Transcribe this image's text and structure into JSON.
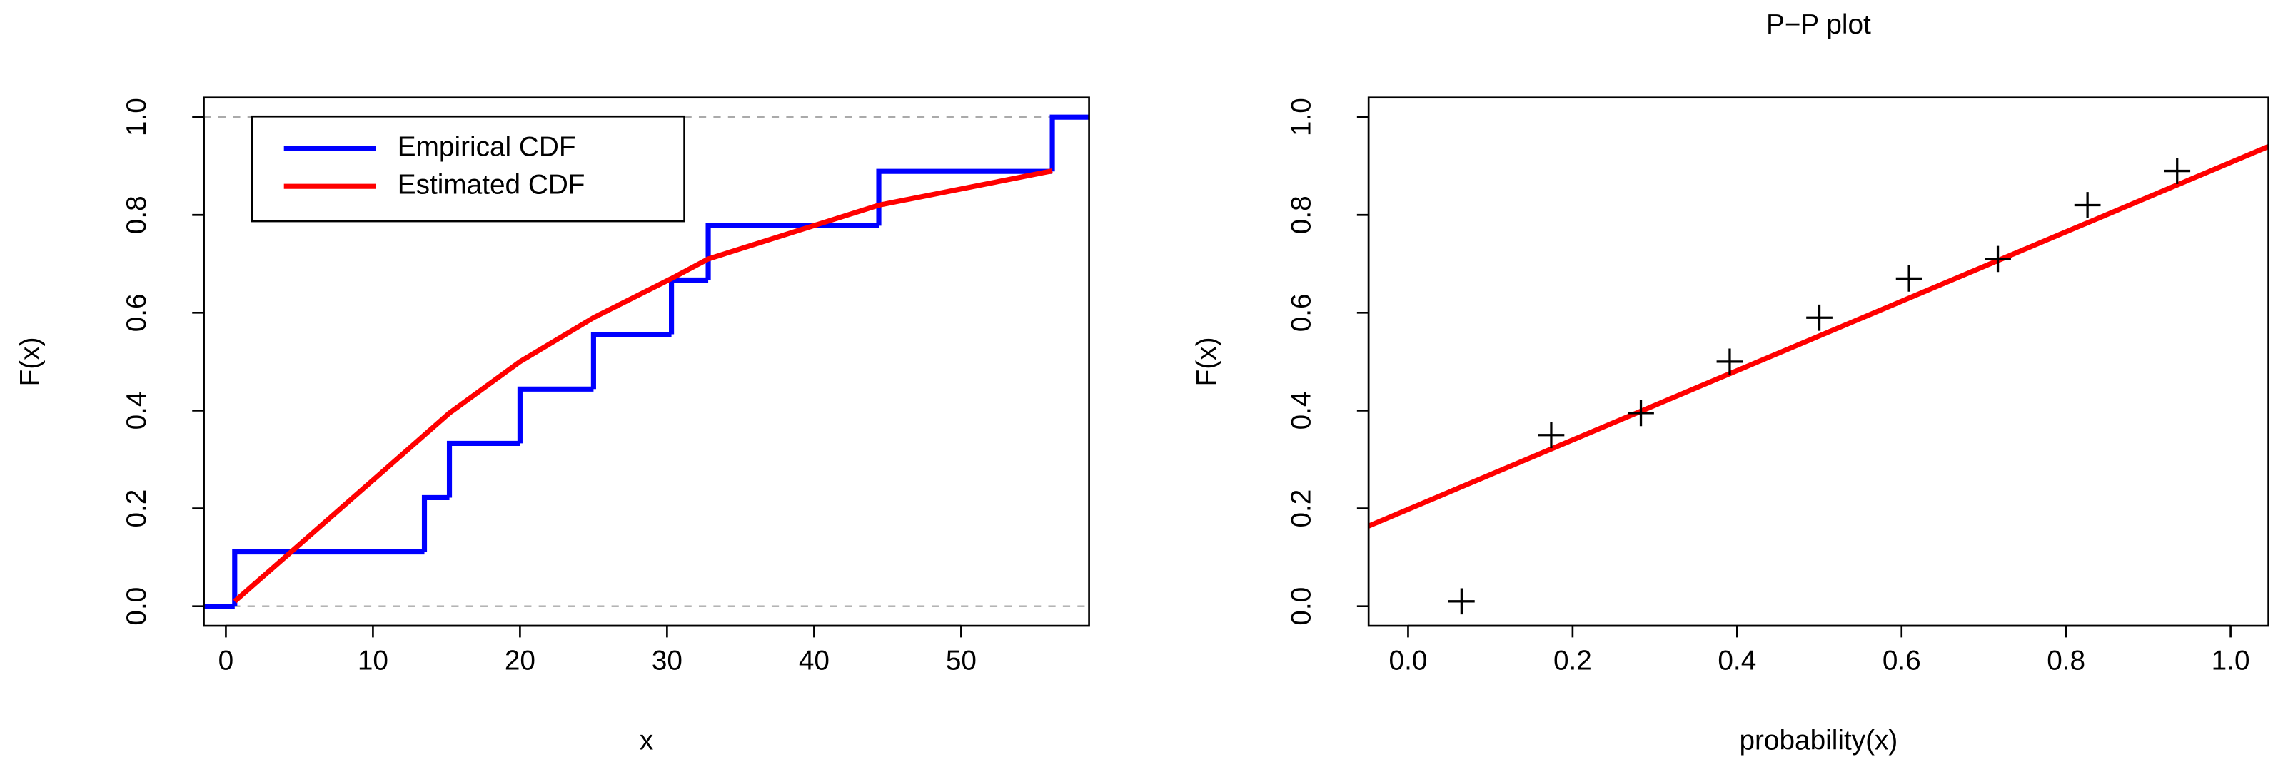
{
  "chart_data": [
    {
      "type": "ecdf",
      "xlabel": "x",
      "ylabel": "F(x)",
      "xlim": [
        -1.5,
        58.7
      ],
      "ylim": [
        -0.04,
        1.04
      ],
      "xticks": [
        0,
        10,
        20,
        30,
        40,
        50
      ],
      "yticks": [
        {
          "value": 0,
          "label": "0.0"
        },
        {
          "value": 0.2,
          "label": "0.2"
        },
        {
          "value": 0.4,
          "label": "0.4"
        },
        {
          "value": 0.6,
          "label": "0.6"
        },
        {
          "value": 0.8,
          "label": "0.8"
        },
        {
          "value": 1,
          "label": "1.0"
        }
      ],
      "hlines": [
        0,
        1
      ],
      "legend": "topleft",
      "series": [
        {
          "name": "Empirical CDF",
          "color": "#0000ff",
          "x": [
            0.6,
            13.5,
            15.2,
            20,
            25,
            30.3,
            32.8,
            44.4,
            56.2
          ],
          "values": [
            0.111,
            0.222,
            0.333,
            0.444,
            0.556,
            0.667,
            0.778,
            0.889,
            1.0
          ]
        },
        {
          "name": "Estimated CDF",
          "color": "#ff0000",
          "x": [
            0.6,
            13.5,
            15.2,
            20,
            25,
            30.3,
            32.8,
            44.4,
            56.2
          ],
          "values": [
            0.01,
            0.35,
            0.395,
            0.5,
            0.59,
            0.67,
            0.71,
            0.82,
            0.89
          ]
        }
      ]
    },
    {
      "type": "pp",
      "title": "P−P plot",
      "xlabel": "probability(x)",
      "ylabel": "F(x)",
      "xlim": [
        -0.048,
        1.046
      ],
      "ylim": [
        -0.04,
        1.04
      ],
      "xticks": [
        {
          "value": 0,
          "label": "0.0"
        },
        {
          "value": 0.2,
          "label": "0.2"
        },
        {
          "value": 0.4,
          "label": "0.4"
        },
        {
          "value": 0.6,
          "label": "0.6"
        },
        {
          "value": 0.8,
          "label": "0.8"
        },
        {
          "value": 1,
          "label": "1.0"
        }
      ],
      "yticks": [
        {
          "value": 0,
          "label": "0.0"
        },
        {
          "value": 0.2,
          "label": "0.2"
        },
        {
          "value": 0.4,
          "label": "0.4"
        },
        {
          "value": 0.6,
          "label": "0.6"
        },
        {
          "value": 0.8,
          "label": "0.8"
        },
        {
          "value": 1,
          "label": "1.0"
        }
      ],
      "color": "#000000",
      "x": [
        0.065,
        0.174,
        0.283,
        0.391,
        0.5,
        0.609,
        0.717,
        0.826,
        0.935
      ],
      "values": [
        0.01,
        0.35,
        0.395,
        0.5,
        0.59,
        0.67,
        0.71,
        0.82,
        0.89
      ],
      "line": {
        "color": "#ff0000",
        "x": [
          -0.048,
          1.046
        ],
        "values": [
          0.164,
          0.94
        ]
      }
    }
  ]
}
